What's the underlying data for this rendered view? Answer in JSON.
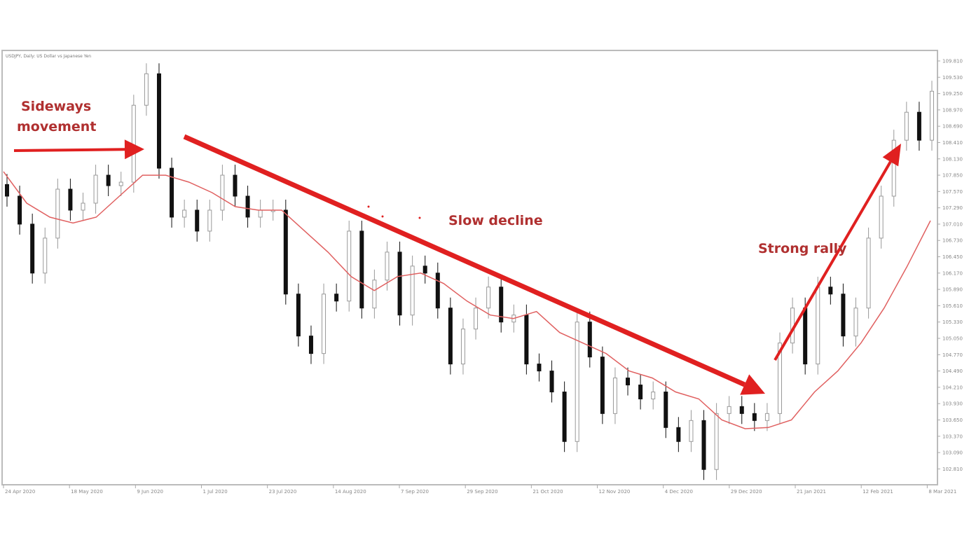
{
  "chart_data": {
    "type": "candlestick",
    "title": "USDJPY, Daily: US Dollar vs Japanese Yen",
    "ylim": [
      102.7,
      109.9
    ],
    "y_ticks": [
      "109.810",
      "109.530",
      "109.250",
      "108.970",
      "108.690",
      "108.410",
      "108.130",
      "107.850",
      "107.570",
      "107.290",
      "107.010",
      "106.730",
      "106.450",
      "106.170",
      "105.890",
      "105.610",
      "105.330",
      "105.050",
      "104.770",
      "104.490",
      "104.210",
      "103.930",
      "103.650",
      "103.370",
      "103.090",
      "102.810"
    ],
    "x_ticks": [
      "24 Apr 2020",
      "18 May 2020",
      "9 Jun 2020",
      "1 Jul 2020",
      "23 Jul 2020",
      "14 Aug 2020",
      "7 Sep 2020",
      "29 Sep 2020",
      "21 Oct 2020",
      "12 Nov 2020",
      "4 Dec 2020",
      "29 Dec 2020",
      "21 Jan 2021",
      "12 Feb 2021",
      "8 Mar 2021"
    ],
    "closes": [
      107.49,
      107.01,
      106.17,
      106.77,
      107.61,
      107.25,
      107.37,
      107.85,
      107.67,
      107.73,
      109.05,
      109.59,
      107.97,
      107.13,
      107.25,
      106.89,
      107.25,
      107.85,
      107.49,
      107.13,
      107.25,
      107.25,
      105.81,
      105.09,
      104.79,
      105.81,
      105.69,
      106.89,
      105.57,
      106.05,
      106.53,
      105.45,
      106.29,
      106.17,
      105.57,
      104.61,
      105.21,
      105.57,
      105.93,
      105.33,
      105.45,
      104.61,
      104.49,
      104.13,
      103.28,
      105.33,
      104.73,
      103.76,
      104.37,
      104.25,
      104.01,
      104.13,
      103.52,
      103.28,
      103.64,
      102.8,
      103.76,
      103.88,
      103.76,
      103.64,
      103.76,
      104.97,
      105.57,
      104.61,
      105.93,
      105.81,
      105.09,
      105.57,
      106.77,
      107.49,
      108.45,
      108.93,
      108.45,
      109.29
    ],
    "moving_average": [
      107.91,
      107.37,
      107.13,
      107.03,
      107.13,
      107.49,
      107.85,
      107.85,
      107.73,
      107.55,
      107.31,
      107.25,
      107.25,
      106.89,
      106.53,
      106.11,
      105.87,
      106.11,
      106.17,
      105.99,
      105.69,
      105.45,
      105.39,
      105.51,
      105.15,
      104.97,
      104.79,
      104.49,
      104.37,
      104.13,
      104.01,
      103.65,
      103.5,
      103.52,
      103.65,
      104.13,
      104.49,
      104.97,
      105.57,
      106.29,
      107.07
    ],
    "grid": false,
    "colors": {
      "up": "#ffffff",
      "down": "#111111",
      "ma": "#e06060",
      "annotation": "#e02020",
      "annotation_text": "#b03030"
    },
    "annotations": [
      {
        "text_lines": [
          "Sideways",
          "movement"
        ]
      },
      {
        "text": "Slow decline"
      },
      {
        "text": "Strong rally"
      }
    ]
  }
}
